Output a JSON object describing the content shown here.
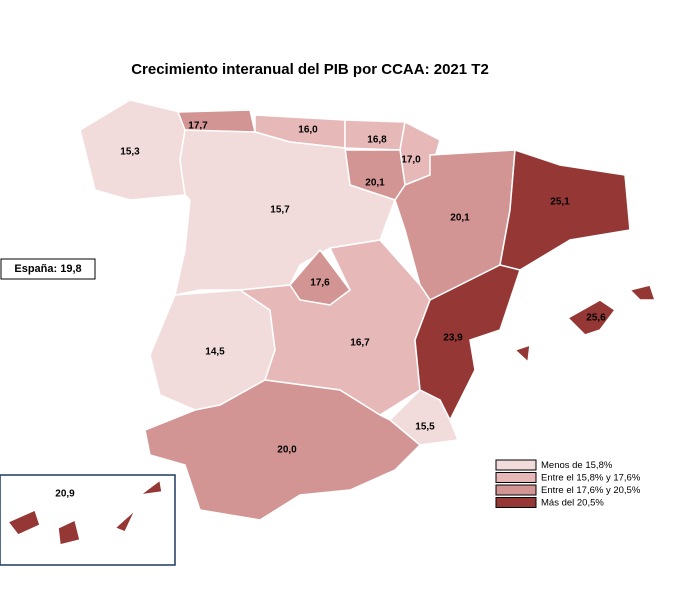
{
  "title": "Crecimiento interanual del PIB por CCAA: 2021 T2",
  "spain_label": "España: 19,8",
  "legend": [
    {
      "label": "Menos de 15,8%",
      "color": "#f2dcdb"
    },
    {
      "label": "Entre el 15,8% y 17,6%",
      "color": "#e6b9b8"
    },
    {
      "label": "Entre el 17,6% y 20,5%",
      "color": "#d39593"
    },
    {
      "label": "Más del 20,5%",
      "color": "#953735"
    }
  ],
  "regions": [
    {
      "value": 15.3,
      "label": "15,3",
      "color": "#f2dcdb"
    },
    {
      "value": 17.7,
      "label": "17,7",
      "color": "#d39593"
    },
    {
      "value": 16.0,
      "label": "16,0",
      "color": "#e6b9b8"
    },
    {
      "value": 16.8,
      "label": "16,8",
      "color": "#e6b9b8"
    },
    {
      "value": 17.0,
      "label": "17,0",
      "color": "#e6b9b8"
    },
    {
      "value": 20.1,
      "label": "20,1",
      "color": "#d39593"
    },
    {
      "value": 15.7,
      "label": "15,7",
      "color": "#f2dcdb"
    },
    {
      "value": 20.1,
      "label": "20,1",
      "color": "#d39593"
    },
    {
      "value": 25.1,
      "label": "25,1",
      "color": "#953735"
    },
    {
      "value": 17.6,
      "label": "17,6",
      "color": "#d39593"
    },
    {
      "value": 14.5,
      "label": "14,5",
      "color": "#f2dcdb"
    },
    {
      "value": 16.7,
      "label": "16,7",
      "color": "#e6b9b8"
    },
    {
      "value": 23.9,
      "label": "23,9",
      "color": "#953735"
    },
    {
      "value": 15.5,
      "label": "15,5",
      "color": "#f2dcdb"
    },
    {
      "value": 20.0,
      "label": "20,0",
      "color": "#d39593"
    },
    {
      "value": 25.6,
      "label": "25,6",
      "color": "#953735"
    },
    {
      "value": 20.9,
      "label": "20,9",
      "color": "#953735"
    }
  ]
}
